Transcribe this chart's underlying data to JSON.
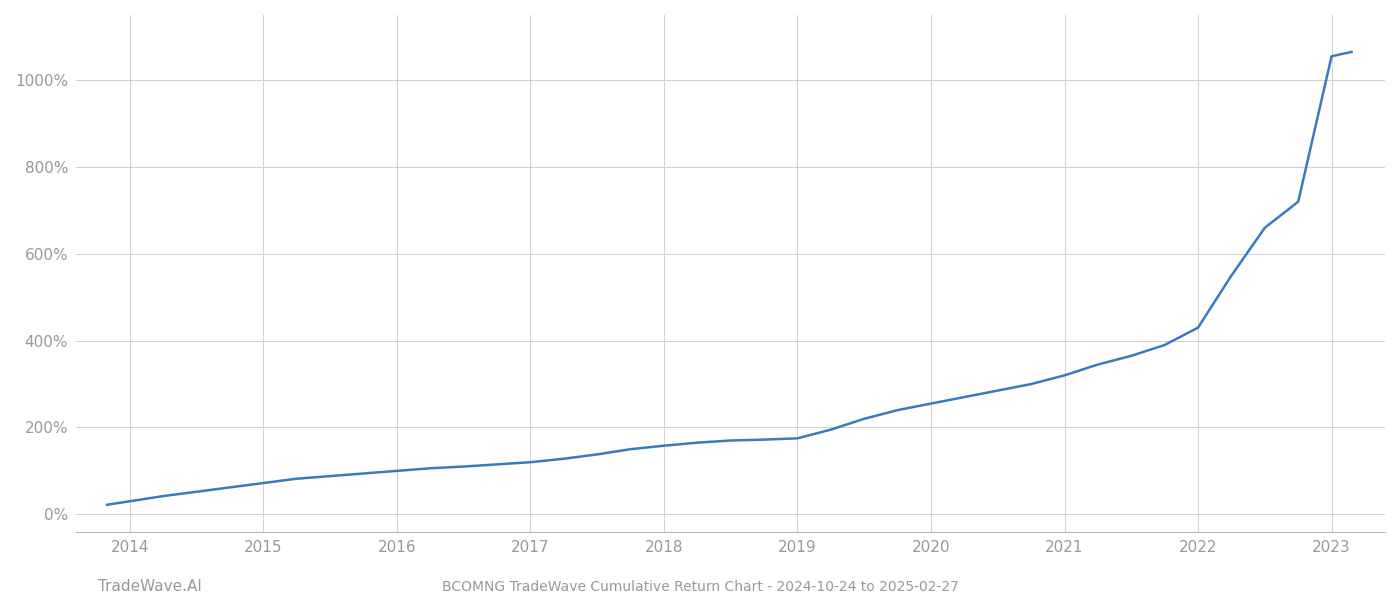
{
  "title": "BCOMNG TradeWave Cumulative Return Chart - 2024-10-24 to 2025-02-27",
  "watermark": "TradeWave.AI",
  "line_color": "#3a7abf",
  "background_color": "#ffffff",
  "grid_color": "#d0d0d0",
  "x_years": [
    2014,
    2015,
    2016,
    2017,
    2018,
    2019,
    2020,
    2021,
    2022,
    2023
  ],
  "x_values": [
    2013.83,
    2014.0,
    2014.25,
    2014.5,
    2014.75,
    2015.0,
    2015.25,
    2015.5,
    2015.75,
    2016.0,
    2016.25,
    2016.5,
    2016.75,
    2017.0,
    2017.25,
    2017.5,
    2017.75,
    2018.0,
    2018.25,
    2018.5,
    2018.75,
    2019.0,
    2019.25,
    2019.5,
    2019.75,
    2020.0,
    2020.25,
    2020.5,
    2020.75,
    2021.0,
    2021.1,
    2021.25,
    2021.5,
    2021.75,
    2022.0,
    2022.25,
    2022.5,
    2022.75,
    2023.0,
    2023.15
  ],
  "y_values": [
    22,
    30,
    42,
    52,
    62,
    72,
    82,
    88,
    94,
    100,
    106,
    110,
    115,
    120,
    128,
    138,
    150,
    158,
    165,
    170,
    172,
    175,
    195,
    220,
    240,
    255,
    270,
    285,
    300,
    320,
    330,
    345,
    365,
    390,
    430,
    550,
    660,
    720,
    1055,
    1065
  ],
  "ylim": [
    -40,
    1150
  ],
  "yticks": [
    0,
    200,
    400,
    600,
    800,
    1000
  ],
  "xlim_left": 2013.6,
  "xlim_right": 2023.4,
  "title_fontsize": 10,
  "tick_fontsize": 11,
  "watermark_fontsize": 11,
  "line_width": 1.8
}
